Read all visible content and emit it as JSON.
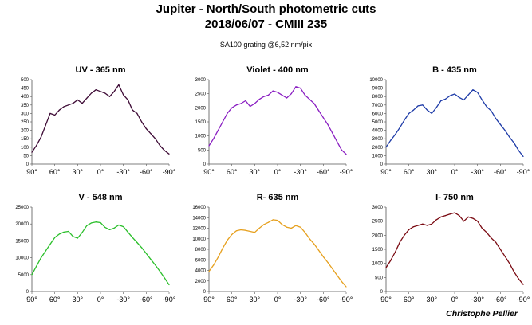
{
  "page": {
    "title_line1": "Jupiter - North/South photometric cuts",
    "title_line2": "2018/06/07 - CMIII 235",
    "subtitle": "SA100 grating @6,52 nm/pix",
    "author": "Christophe Pellier"
  },
  "chart_data": [
    {
      "type": "line",
      "title": "UV - 365 nm",
      "color": "#3d0a35",
      "ylim": [
        0,
        500
      ],
      "yticks": [
        0,
        50,
        100,
        150,
        200,
        250,
        300,
        350,
        400,
        450,
        500
      ],
      "xlim": [
        90,
        -90
      ],
      "xticks": [
        90,
        60,
        30,
        0,
        -30,
        -60,
        -90
      ],
      "xtick_labels": [
        "90°",
        "60°",
        "30°",
        "0°",
        "-30°",
        "-60°",
        "-90°"
      ],
      "series": [
        {
          "x": [
            90,
            84,
            78,
            72,
            66,
            60,
            54,
            48,
            42,
            36,
            30,
            24,
            18,
            12,
            6,
            0,
            -6,
            -12,
            -18,
            -24,
            -30,
            -36,
            -42,
            -48,
            -54,
            -60,
            -66,
            -72,
            -78,
            -84,
            -90
          ],
          "y": [
            70,
            110,
            160,
            230,
            300,
            290,
            320,
            340,
            350,
            360,
            380,
            360,
            390,
            420,
            440,
            430,
            420,
            400,
            430,
            470,
            410,
            380,
            320,
            300,
            250,
            210,
            180,
            150,
            110,
            80,
            60
          ]
        }
      ]
    },
    {
      "type": "line",
      "title": "Violet - 400 nm",
      "color": "#8a1fc2",
      "ylim": [
        0,
        3000
      ],
      "yticks": [
        0,
        500,
        1000,
        1500,
        2000,
        2500,
        3000
      ],
      "xlim": [
        90,
        -90
      ],
      "xticks": [
        90,
        60,
        30,
        0,
        -30,
        -60,
        -90
      ],
      "xtick_labels": [
        "90°",
        "60°",
        "30°",
        "0°",
        "-30°",
        "-60°",
        "-90°"
      ],
      "series": [
        {
          "x": [
            90,
            84,
            78,
            72,
            66,
            60,
            54,
            48,
            42,
            36,
            30,
            24,
            18,
            12,
            6,
            0,
            -6,
            -12,
            -18,
            -24,
            -30,
            -36,
            -42,
            -48,
            -54,
            -60,
            -66,
            -72,
            -78,
            -84,
            -90
          ],
          "y": [
            650,
            900,
            1200,
            1500,
            1800,
            2000,
            2100,
            2150,
            2250,
            2050,
            2150,
            2300,
            2400,
            2450,
            2600,
            2550,
            2450,
            2350,
            2500,
            2750,
            2700,
            2450,
            2300,
            2150,
            1900,
            1650,
            1400,
            1100,
            800,
            500,
            350
          ]
        }
      ]
    },
    {
      "type": "line",
      "title": "B - 435 nm",
      "color": "#1f3ca8",
      "ylim": [
        0,
        10000
      ],
      "yticks": [
        0,
        1000,
        2000,
        3000,
        4000,
        5000,
        6000,
        7000,
        8000,
        9000,
        10000
      ],
      "xlim": [
        90,
        -90
      ],
      "xticks": [
        90,
        60,
        30,
        0,
        -30,
        -60,
        -90
      ],
      "xtick_labels": [
        "90°",
        "60°",
        "30°",
        "0°",
        "-30°",
        "-60°",
        "-90°"
      ],
      "series": [
        {
          "x": [
            90,
            84,
            78,
            72,
            66,
            60,
            54,
            48,
            42,
            36,
            30,
            24,
            18,
            12,
            6,
            0,
            -6,
            -12,
            -18,
            -24,
            -30,
            -36,
            -42,
            -48,
            -54,
            -60,
            -66,
            -72,
            -78,
            -84,
            -90
          ],
          "y": [
            2000,
            2800,
            3500,
            4300,
            5200,
            6000,
            6400,
            6900,
            7000,
            6400,
            6000,
            6700,
            7500,
            7700,
            8100,
            8300,
            7900,
            7600,
            8200,
            8800,
            8500,
            7600,
            6800,
            6300,
            5400,
            4700,
            4000,
            3200,
            2500,
            1600,
            900
          ]
        }
      ]
    },
    {
      "type": "line",
      "title": "V - 548 nm",
      "color": "#2bbf2b",
      "ylim": [
        0,
        25000
      ],
      "yticks": [
        0,
        5000,
        10000,
        15000,
        20000,
        25000
      ],
      "xlim": [
        90,
        -90
      ],
      "xticks": [
        90,
        60,
        30,
        0,
        -30,
        -60,
        -90
      ],
      "xtick_labels": [
        "90°",
        "60°",
        "30°",
        "0°",
        "-30°",
        "-60°",
        "-90°"
      ],
      "series": [
        {
          "x": [
            90,
            84,
            78,
            72,
            66,
            60,
            54,
            48,
            42,
            36,
            30,
            24,
            18,
            12,
            6,
            0,
            -6,
            -12,
            -18,
            -24,
            -30,
            -36,
            -42,
            -48,
            -54,
            -60,
            -66,
            -72,
            -78,
            -84,
            -90
          ],
          "y": [
            5000,
            7500,
            10000,
            12000,
            14000,
            16000,
            17000,
            17600,
            17800,
            16300,
            15800,
            17500,
            19500,
            20300,
            20600,
            20400,
            19000,
            18300,
            18800,
            19700,
            19200,
            17600,
            16000,
            14500,
            13000,
            11300,
            9500,
            7800,
            6000,
            4000,
            2000
          ]
        }
      ]
    },
    {
      "type": "line",
      "title": "R- 635 nm",
      "color": "#e6a01e",
      "ylim": [
        0,
        16000
      ],
      "yticks": [
        0,
        2000,
        4000,
        6000,
        8000,
        10000,
        12000,
        14000,
        16000
      ],
      "xlim": [
        90,
        -90
      ],
      "xticks": [
        90,
        60,
        30,
        0,
        -30,
        -60,
        -90
      ],
      "xtick_labels": [
        "90°",
        "60°",
        "30°",
        "0°",
        "-30°",
        "-60°",
        "-90°"
      ],
      "series": [
        {
          "x": [
            90,
            84,
            78,
            72,
            66,
            60,
            54,
            48,
            42,
            36,
            30,
            24,
            18,
            12,
            6,
            0,
            -6,
            -12,
            -18,
            -24,
            -30,
            -36,
            -42,
            -48,
            -54,
            -60,
            -66,
            -72,
            -78,
            -84,
            -90
          ],
          "y": [
            3800,
            5000,
            6500,
            8200,
            9700,
            10800,
            11500,
            11700,
            11600,
            11400,
            11200,
            12000,
            12700,
            13100,
            13600,
            13500,
            12700,
            12200,
            12000,
            12500,
            12200,
            11200,
            10000,
            9000,
            7800,
            6600,
            5500,
            4300,
            3100,
            1900,
            900
          ]
        }
      ]
    },
    {
      "type": "line",
      "title": "I- 750 nm",
      "color": "#7a0a12",
      "ylim": [
        0,
        3000
      ],
      "yticks": [
        0,
        500,
        1000,
        1500,
        2000,
        2500,
        3000
      ],
      "xlim": [
        90,
        -90
      ],
      "xticks": [
        90,
        60,
        30,
        0,
        -30,
        -60,
        -90
      ],
      "xtick_labels": [
        "90°",
        "60°",
        "30°",
        "0°",
        "-30°",
        "-60°",
        "-90°"
      ],
      "series": [
        {
          "x": [
            90,
            84,
            78,
            72,
            66,
            60,
            54,
            48,
            42,
            36,
            30,
            24,
            18,
            12,
            6,
            0,
            -6,
            -12,
            -18,
            -24,
            -30,
            -36,
            -42,
            -48,
            -54,
            -60,
            -66,
            -72,
            -78,
            -84,
            -90
          ],
          "y": [
            850,
            1100,
            1400,
            1750,
            2000,
            2200,
            2300,
            2350,
            2400,
            2350,
            2400,
            2550,
            2650,
            2700,
            2750,
            2800,
            2700,
            2500,
            2650,
            2600,
            2500,
            2250,
            2100,
            1900,
            1750,
            1500,
            1250,
            1000,
            700,
            450,
            250
          ]
        }
      ]
    }
  ]
}
